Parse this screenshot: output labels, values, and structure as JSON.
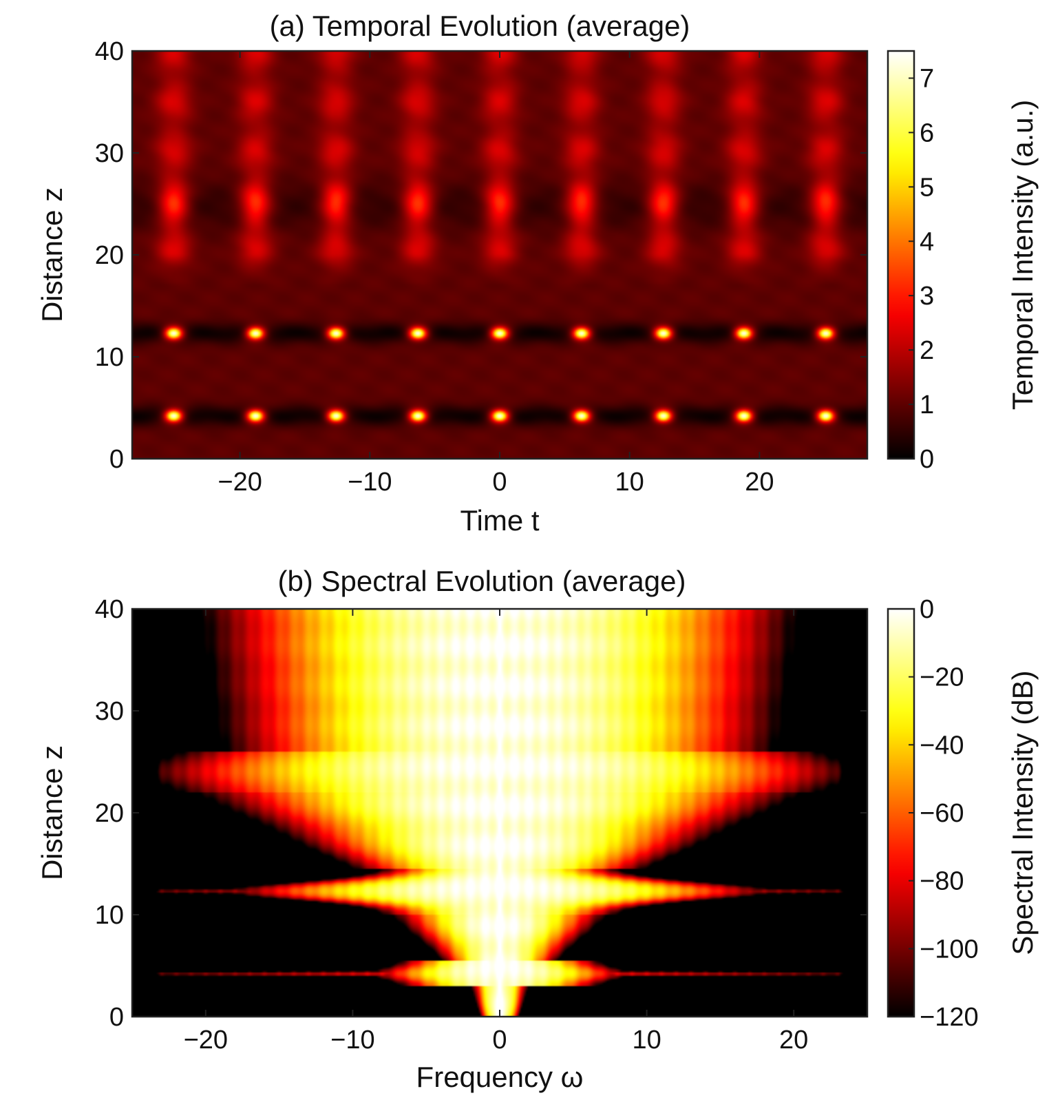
{
  "chart_data": [
    {
      "type": "heatmap",
      "title": "(a) Temporal Evolution (average)",
      "xlabel": "Time t",
      "ylabel": "Distance z",
      "xlim": [
        -28.3,
        28.3
      ],
      "ylim": [
        0,
        40
      ],
      "xticks": [
        -20,
        -10,
        0,
        10,
        20
      ],
      "yticks": [
        0,
        10,
        20,
        30,
        40
      ],
      "xtick_labels": [
        "−20",
        "−10",
        "0",
        "10",
        "20"
      ],
      "ytick_labels": [
        "0",
        "10",
        "20",
        "30",
        "40"
      ],
      "colorbar": {
        "label": "Temporal Intensity (a.u.)",
        "range": [
          0,
          7.5
        ],
        "ticks": [
          0,
          1,
          2,
          3,
          4,
          5,
          6,
          7
        ],
        "tick_labels": [
          "0",
          "1",
          "2",
          "3",
          "4",
          "5",
          "6",
          "7"
        ],
        "colormap": "hot"
      },
      "features": {
        "pulse_times": [
          -25.1,
          -18.8,
          -12.6,
          -6.3,
          0,
          6.3,
          12.6,
          18.8,
          25.1
        ],
        "peak_distances": [
          4.2,
          12.3
        ],
        "peak_intensity": 7.3,
        "secondary_focus_distance": 24.8,
        "secondary_intensity": 2.6,
        "background_intensity": 1.0
      }
    },
    {
      "type": "heatmap",
      "title": "(b) Spectral Evolution (average)",
      "xlabel": "Frequency ω",
      "ylabel": "Distance z",
      "xlim": [
        -25,
        25
      ],
      "ylim": [
        0,
        40
      ],
      "xticks": [
        -20,
        -10,
        0,
        10,
        20
      ],
      "yticks": [
        0,
        10,
        20,
        30,
        40
      ],
      "xtick_labels": [
        "−20",
        "−10",
        "0",
        "10",
        "20"
      ],
      "ytick_labels": [
        "0",
        "10",
        "20",
        "30",
        "40"
      ],
      "colorbar": {
        "label": "Spectral Intensity (dB)",
        "range": [
          -120,
          0
        ],
        "ticks": [
          0,
          -20,
          -40,
          -60,
          -80,
          -100,
          -120
        ],
        "tick_labels": [
          "0",
          "−20",
          "−40",
          "−60",
          "−80",
          "−100",
          "−120"
        ],
        "colormap": "hot"
      },
      "features": {
        "comb_spacing": 1.0,
        "broadening_distances": [
          4.2,
          12.3
        ],
        "max_half_width": 22,
        "widest_distance": 24
      }
    }
  ]
}
